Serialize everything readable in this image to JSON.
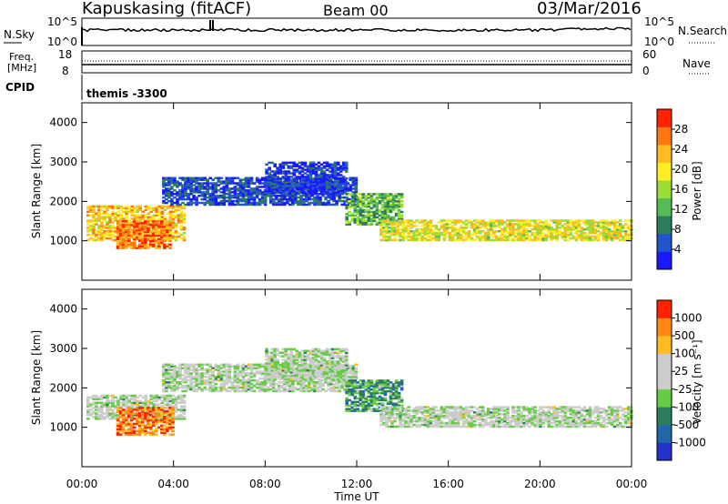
{
  "header": {
    "radar": "Kapuskasing (fitACF)",
    "beam": "Beam 00",
    "date": "03/Mar/2016"
  },
  "noise_panel": {
    "left_label": "N.Sky",
    "left_ticks": [
      "10^5",
      "10^0"
    ],
    "right_ticks": [
      "10^5",
      "10^0"
    ],
    "right_label": "N.Search"
  },
  "freq_panel": {
    "left_label_1": "Freq.",
    "left_label_2": "[MHz]",
    "left_ticks": [
      "18",
      "8"
    ],
    "right_ticks": [
      "60",
      "0"
    ],
    "right_label": "Nave"
  },
  "cpid": {
    "label": "CPID",
    "program": "themis -3300"
  },
  "chart_data": [
    {
      "type": "heatmap",
      "name": "power",
      "ylabel": "Slant Range [km]",
      "yticks": [
        "4000",
        "3000",
        "2000",
        "1000"
      ],
      "colorbar_label": "Power [dB]",
      "colorbar_ticks": [
        "28",
        "24",
        "20",
        "16",
        "12",
        "8",
        "4"
      ],
      "colors": [
        "#1a1aff",
        "#2255cc",
        "#2e7d5a",
        "#55bb55",
        "#99dd33",
        "#ffee22",
        "#ffbb22",
        "#ff7711",
        "#ff2200"
      ],
      "bands": [
        {
          "t0": 0.2,
          "t1": 4.5,
          "r0": 1000,
          "r1": 1900,
          "level": 0.7
        },
        {
          "t0": 1.5,
          "t1": 3.8,
          "r0": 800,
          "r1": 1500,
          "level": 0.85
        },
        {
          "t0": 3.5,
          "t1": 12.0,
          "r0": 1900,
          "r1": 2600,
          "level": 0.15
        },
        {
          "t0": 8.0,
          "t1": 11.5,
          "r0": 2200,
          "r1": 3000,
          "level": 0.1
        },
        {
          "t0": 11.5,
          "t1": 14.0,
          "r0": 1400,
          "r1": 2200,
          "level": 0.4
        },
        {
          "t0": 13.0,
          "t1": 24.0,
          "r0": 1000,
          "r1": 1500,
          "level": 0.6
        }
      ]
    },
    {
      "type": "heatmap",
      "name": "velocity",
      "ylabel": "Slant Range [km]",
      "xlabel": "Time UT",
      "yticks": [
        "4000",
        "3000",
        "2000",
        "1000"
      ],
      "xticks": [
        "00:00",
        "04:00",
        "08:00",
        "12:00",
        "16:00",
        "20:00",
        "00:00"
      ],
      "colorbar_label": "Velocity [m s⁻¹]",
      "colorbar_ticks": [
        "1000",
        "500",
        "100",
        "25",
        "-25",
        "-100",
        "-500",
        "-1000"
      ],
      "colors": [
        "#2233cc",
        "#2266aa",
        "#2e7d5a",
        "#66cc44",
        "#cccccc",
        "#cccccc",
        "#ffbb22",
        "#ff8811",
        "#ff2200"
      ],
      "bands": [
        {
          "t0": 0.2,
          "t1": 4.5,
          "r0": 1200,
          "r1": 1800,
          "level": 0.5
        },
        {
          "t0": 1.5,
          "t1": 4.0,
          "r0": 800,
          "r1": 1500,
          "level": 0.85
        },
        {
          "t0": 3.5,
          "t1": 12.0,
          "r0": 1900,
          "r1": 2600,
          "level": 0.5
        },
        {
          "t0": 8.0,
          "t1": 11.5,
          "r0": 2200,
          "r1": 3000,
          "level": 0.5
        },
        {
          "t0": 11.5,
          "t1": 14.0,
          "r0": 1400,
          "r1": 2200,
          "level": 0.3
        },
        {
          "t0": 13.0,
          "t1": 24.0,
          "r0": 1000,
          "r1": 1500,
          "level": 0.5
        }
      ]
    }
  ]
}
